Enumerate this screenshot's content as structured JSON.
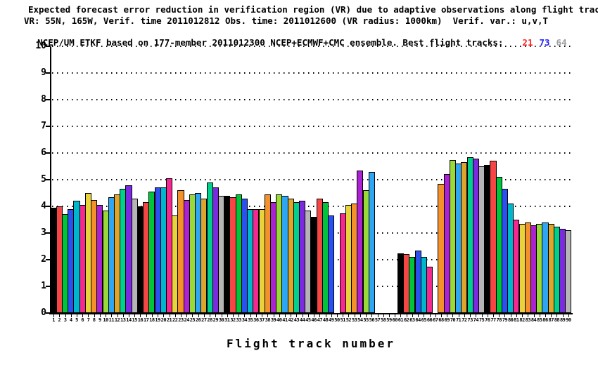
{
  "title": {
    "line1": "Expected forecast error reduction in verification region (VR) due to adaptive observations along flight tracks.",
    "line2": "VR: 55N, 165W, Verif. time 2011012812 Obs. time: 2011012600 (VR radius: 1000km)  Verif. var.: u,v,T",
    "line3_prefix": "NCEP/UM ETKF based on 177-member 2011012300 NCEP+ECMWF+CMC ensemble. Best flight tracks:",
    "best_tracks": [
      {
        "label": "21",
        "color": "#ff2222"
      },
      {
        "label": "73",
        "color": "#2222ff"
      },
      {
        "label": "64",
        "color": "#9e9e9e"
      }
    ]
  },
  "chart_data": {
    "type": "bar",
    "title": "Expected forecast error reduction in verification region (VR) due to adaptive observations along flight tracks.",
    "xlabel": "Flight track number",
    "ylabel": "",
    "ylim": [
      0,
      10
    ],
    "yticks": [
      0,
      1,
      2,
      3,
      4,
      5,
      6,
      7,
      8,
      9,
      10
    ],
    "grid": "dotted horizontal lines at each integer 1-10",
    "legend_position": "none",
    "x_slots": 90,
    "x_tick_range": {
      "from": 1,
      "to": 90
    },
    "palette_cycle": [
      "#000000",
      "#f64545",
      "#00c53a",
      "#2b50f0",
      "#00b6cb",
      "#f5288f",
      "#e8d33c",
      "#f3922b",
      "#aa22d2",
      "#9ada38",
      "#2ea6f4",
      "#dea52c",
      "#00d08c",
      "#7c2ae0",
      "#b5b5b5"
    ],
    "bars": [
      {
        "track": 1,
        "value": 3.95
      },
      {
        "track": 2,
        "value": 4.0
      },
      {
        "track": 3,
        "value": 3.7
      },
      {
        "track": 4,
        "value": 3.9
      },
      {
        "track": 5,
        "value": 4.2
      },
      {
        "track": 6,
        "value": 4.05
      },
      {
        "track": 7,
        "value": 4.5
      },
      {
        "track": 8,
        "value": 4.25
      },
      {
        "track": 9,
        "value": 4.05
      },
      {
        "track": 10,
        "value": 3.85
      },
      {
        "track": 11,
        "value": 4.35
      },
      {
        "track": 12,
        "value": 4.45
      },
      {
        "track": 13,
        "value": 4.65
      },
      {
        "track": 14,
        "value": 4.8
      },
      {
        "track": 15,
        "value": 4.3
      },
      {
        "track": 16,
        "value": 4.0
      },
      {
        "track": 17,
        "value": 4.15
      },
      {
        "track": 18,
        "value": 4.55
      },
      {
        "track": 19,
        "value": 4.7
      },
      {
        "track": 20,
        "value": 4.7
      },
      {
        "track": 21,
        "value": 5.05
      },
      {
        "track": 22,
        "value": 3.65
      },
      {
        "track": 23,
        "value": 4.6
      },
      {
        "track": 24,
        "value": 4.25
      },
      {
        "track": 25,
        "value": 4.45
      },
      {
        "track": 26,
        "value": 4.5
      },
      {
        "track": 27,
        "value": 4.3
      },
      {
        "track": 28,
        "value": 4.9
      },
      {
        "track": 29,
        "value": 4.7
      },
      {
        "track": 30,
        "value": 4.4
      },
      {
        "track": 31,
        "value": 4.4
      },
      {
        "track": 32,
        "value": 4.35
      },
      {
        "track": 33,
        "value": 4.45
      },
      {
        "track": 34,
        "value": 4.3
      },
      {
        "track": 35,
        "value": 3.9
      },
      {
        "track": 36,
        "value": 3.9
      },
      {
        "track": 37,
        "value": 3.9
      },
      {
        "track": 38,
        "value": 4.45
      },
      {
        "track": 39,
        "value": 4.15
      },
      {
        "track": 40,
        "value": 4.45
      },
      {
        "track": 41,
        "value": 4.4
      },
      {
        "track": 42,
        "value": 4.3
      },
      {
        "track": 43,
        "value": 4.15
      },
      {
        "track": 44,
        "value": 4.2
      },
      {
        "track": 45,
        "value": 3.85
      },
      {
        "track": 46,
        "value": 3.6
      },
      {
        "track": 47,
        "value": 4.3
      },
      {
        "track": 48,
        "value": 4.15
      },
      {
        "track": 49,
        "value": 3.65
      },
      {
        "track": 51,
        "value": 3.75
      },
      {
        "track": 52,
        "value": 4.05
      },
      {
        "track": 53,
        "value": 4.1
      },
      {
        "track": 54,
        "value": 5.35
      },
      {
        "track": 55,
        "value": 4.6
      },
      {
        "track": 56,
        "value": 5.3
      },
      {
        "track": 61,
        "value": 2.25
      },
      {
        "track": 62,
        "value": 2.2
      },
      {
        "track": 63,
        "value": 2.1
      },
      {
        "track": 64,
        "value": 2.35
      },
      {
        "track": 65,
        "value": 2.1
      },
      {
        "track": 66,
        "value": 1.75
      },
      {
        "track": 68,
        "value": 4.85
      },
      {
        "track": 69,
        "value": 5.2
      },
      {
        "track": 70,
        "value": 5.75
      },
      {
        "track": 71,
        "value": 5.6
      },
      {
        "track": 72,
        "value": 5.65
      },
      {
        "track": 73,
        "value": 5.85
      },
      {
        "track": 74,
        "value": 5.8
      },
      {
        "track": 75,
        "value": 5.5
      },
      {
        "track": 76,
        "value": 5.55
      },
      {
        "track": 77,
        "value": 5.7
      },
      {
        "track": 78,
        "value": 5.1
      },
      {
        "track": 79,
        "value": 4.65
      },
      {
        "track": 80,
        "value": 4.1
      },
      {
        "track": 81,
        "value": 3.5
      },
      {
        "track": 82,
        "value": 3.35
      },
      {
        "track": 83,
        "value": 3.4
      },
      {
        "track": 84,
        "value": 3.3
      },
      {
        "track": 85,
        "value": 3.35
      },
      {
        "track": 86,
        "value": 3.4
      },
      {
        "track": 87,
        "value": 3.35
      },
      {
        "track": 88,
        "value": 3.25
      },
      {
        "track": 89,
        "value": 3.15
      },
      {
        "track": 90,
        "value": 3.1
      }
    ]
  }
}
